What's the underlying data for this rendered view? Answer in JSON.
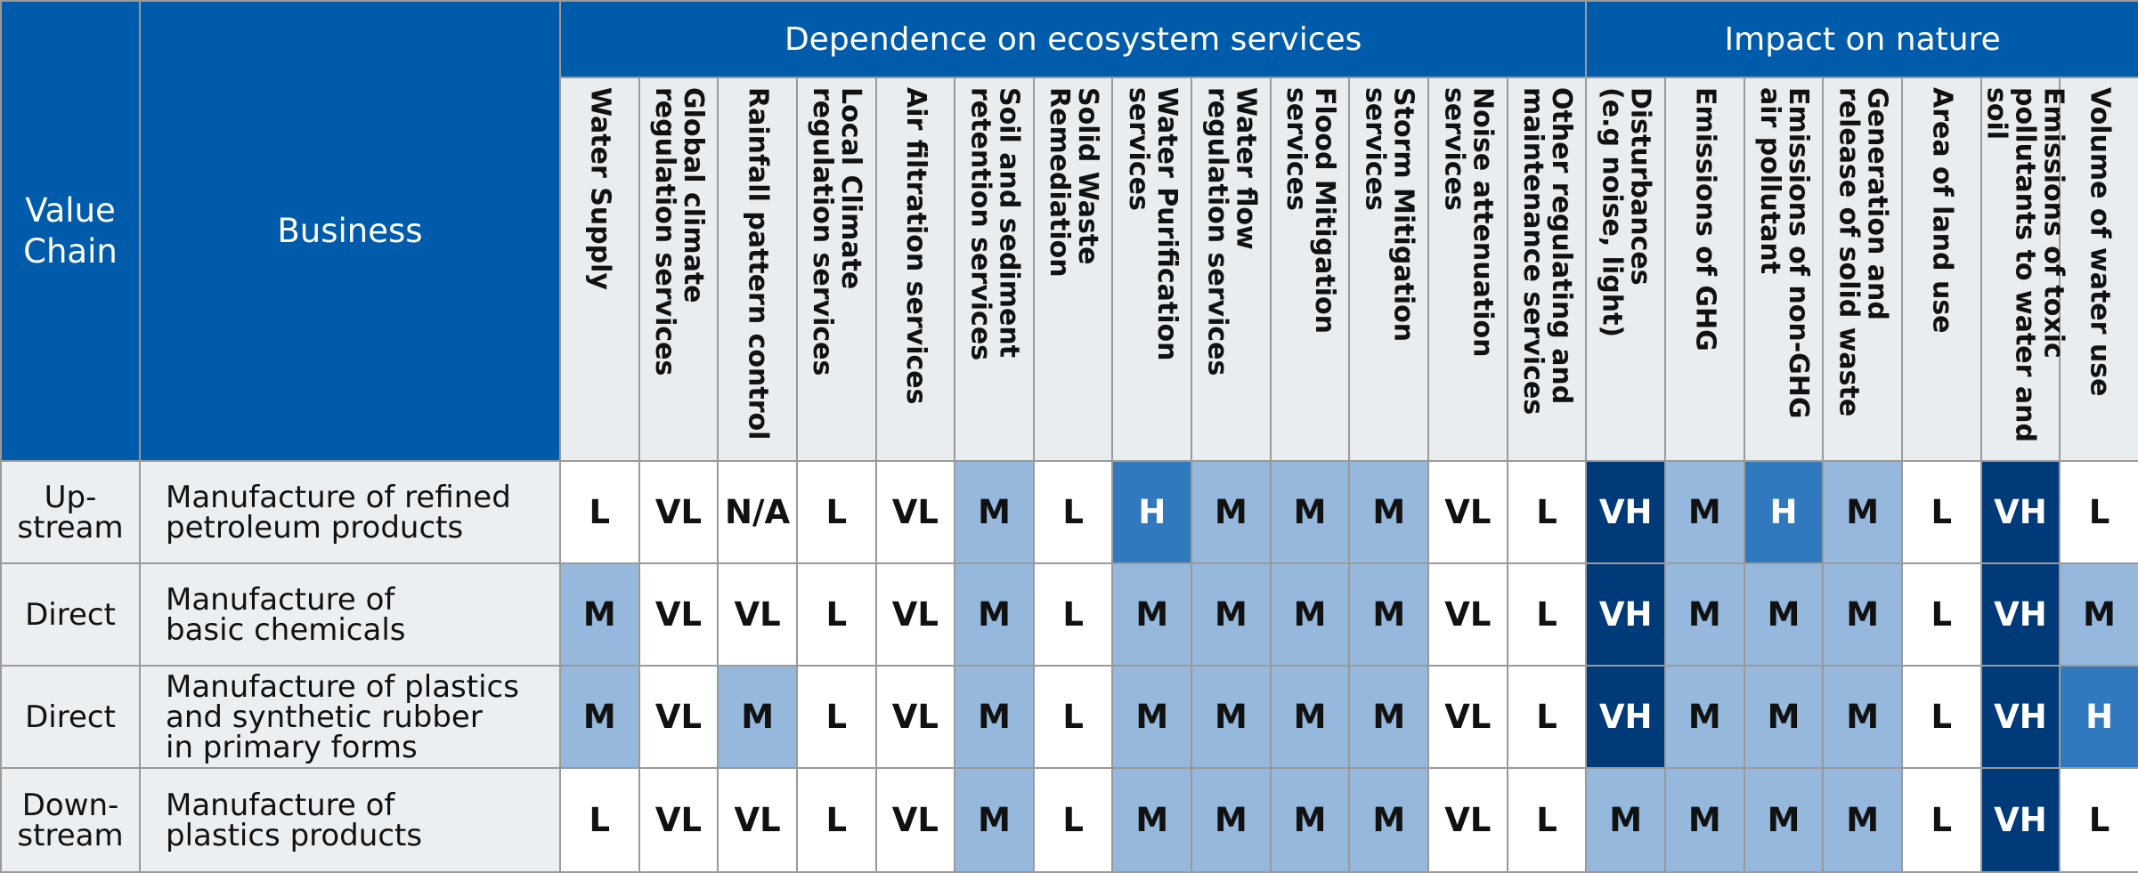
{
  "header": {
    "value_chain": "Value\nChain",
    "business": "Business",
    "groups": [
      {
        "title": "Dependence on ecosystem services",
        "span": 13
      },
      {
        "title": "Impact on nature",
        "span": 7
      }
    ],
    "columns": [
      "Water Supply",
      "Global climate\nregulation services",
      "Rainfall pattern control",
      "Local Climate\nregulation services",
      "Air filtration services",
      "Soil and sediment\nretention services",
      "Solid Waste\nRemediation",
      "Water Purification\nservices",
      "Water flow\nregulation services",
      "Flood Mitigation\nservices",
      "Storm Mitigation\nservices",
      "Noise attenuation\nservices",
      "Other regulating and\nmaintenance services",
      "Disturbances\n(e.g noise, light)",
      "Emissions of GHG",
      "Emissions of non-GHG\nair pollutant",
      "Generation and\nrelease of solid waste",
      "Area of land use",
      "Emissions of toxic\npollutants to water and soil",
      "Volume of water use"
    ]
  },
  "rating_colors": {
    "VH": {
      "fill": "#003a78",
      "text": "#ffffff"
    },
    "H": {
      "fill": "#3079be",
      "text": "#ffffff"
    },
    "M": {
      "fill": "#95b8dc",
      "text": "#111111"
    },
    "L": {
      "fill": "#ffffff",
      "text": "#111111"
    },
    "VL": {
      "fill": "#ffffff",
      "text": "#111111"
    },
    "N/A": {
      "fill": "#ffffff",
      "text": "#111111"
    }
  },
  "table": {
    "rows": [
      {
        "value_chain": "Up-\nstream",
        "business": "Manufacture of refined\npetroleum products",
        "cells": [
          "L",
          "VL",
          "N/A",
          "L",
          "VL",
          "M",
          "L",
          "H",
          "M",
          "M",
          "M",
          "VL",
          "L",
          "VH",
          "M",
          "H",
          "M",
          "L",
          "VH",
          "L"
        ]
      },
      {
        "value_chain": "Direct",
        "business": "Manufacture of\nbasic chemicals",
        "cells": [
          "M",
          "VL",
          "VL",
          "L",
          "VL",
          "M",
          "L",
          "M",
          "M",
          "M",
          "M",
          "VL",
          "L",
          "VH",
          "M",
          "M",
          "M",
          "L",
          "VH",
          "M"
        ]
      },
      {
        "value_chain": "Direct",
        "business": "Manufacture of plastics\nand synthetic rubber\nin primary forms",
        "cells": [
          "M",
          "VL",
          "M",
          "L",
          "VL",
          "M",
          "L",
          "M",
          "M",
          "M",
          "M",
          "VL",
          "L",
          "VH",
          "M",
          "M",
          "M",
          "L",
          "VH",
          "H"
        ]
      },
      {
        "value_chain": "Down-\nstream",
        "business": "Manufacture of\nplastics products",
        "cells": [
          "L",
          "VL",
          "VL",
          "L",
          "VL",
          "M",
          "L",
          "M",
          "M",
          "M",
          "M",
          "VL",
          "L",
          "M",
          "M",
          "M",
          "M",
          "L",
          "VH",
          "L"
        ]
      }
    ]
  }
}
